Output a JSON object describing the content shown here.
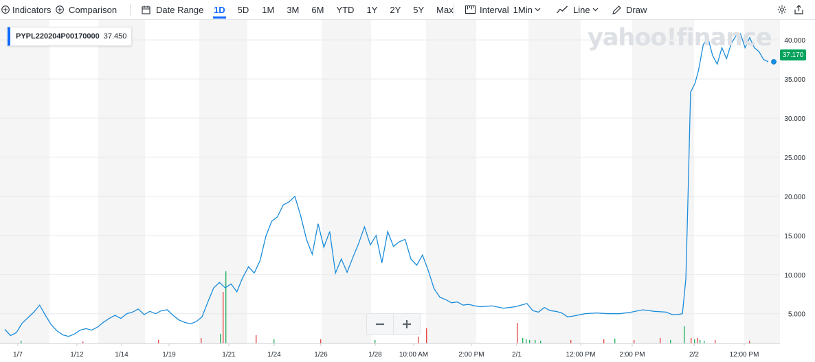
{
  "toolbar": {
    "indicators_label": "Indicators",
    "comparison_label": "Comparison",
    "date_range_label": "Date Range",
    "ranges": [
      "1D",
      "5D",
      "1M",
      "3M",
      "6M",
      "YTD",
      "1Y",
      "2Y",
      "5Y",
      "Max"
    ],
    "active_range": "1D",
    "interval_label": "Interval",
    "interval_value": "1Min",
    "chart_type_label": "Line",
    "draw_label": "Draw"
  },
  "legend": {
    "symbol": "PYPL220204P00170000",
    "value": "37.450"
  },
  "last_price": "37.170",
  "watermark": "yahoo!finance",
  "colors": {
    "line": "#1a8cdb",
    "accent": "#0f69ff",
    "price_tag": "#00a25c",
    "band": "#f5f5f5",
    "vol_up": "#21b25d",
    "vol_down": "#e84a4a"
  },
  "chart_data": {
    "type": "line",
    "title": "",
    "series": [
      {
        "name": "PYPL220204P00170000"
      }
    ],
    "x_ticks": [
      "1/7",
      "1/12",
      "1/14",
      "1/19",
      "1/21",
      "1/24",
      "1/26",
      "1/28",
      "10:00 AM",
      "2:00 PM",
      "2/1",
      "12:00 PM",
      "2:00 PM",
      "2/2",
      "12:00 PM"
    ],
    "y_ticks": [
      "5.000",
      "10.000",
      "15.000",
      "20.000",
      "25.000",
      "30.000",
      "35.000",
      "40.000"
    ],
    "ylim": [
      1.2,
      41.5
    ],
    "points": [
      [
        0,
        3.0
      ],
      [
        0.5,
        2.2
      ],
      [
        1,
        2.6
      ],
      [
        1.5,
        3.8
      ],
      [
        2,
        4.5
      ],
      [
        2.5,
        5.2
      ],
      [
        3,
        6.1
      ],
      [
        3.5,
        4.8
      ],
      [
        4,
        3.6
      ],
      [
        4.5,
        2.8
      ],
      [
        5,
        2.3
      ],
      [
        5.5,
        2.1
      ],
      [
        6,
        2.4
      ],
      [
        6.5,
        2.9
      ],
      [
        7,
        3.1
      ],
      [
        7.5,
        2.9
      ],
      [
        8,
        3.3
      ],
      [
        8.5,
        3.9
      ],
      [
        9,
        4.4
      ],
      [
        9.5,
        4.8
      ],
      [
        10,
        4.4
      ],
      [
        10.5,
        5.0
      ],
      [
        11,
        5.2
      ],
      [
        11.5,
        5.6
      ],
      [
        12,
        4.9
      ],
      [
        12.5,
        5.3
      ],
      [
        13,
        5.0
      ],
      [
        13.5,
        5.4
      ],
      [
        14,
        5.5
      ],
      [
        14.5,
        4.8
      ],
      [
        15,
        4.2
      ],
      [
        15.5,
        3.9
      ],
      [
        16,
        3.7
      ],
      [
        16.5,
        4.0
      ],
      [
        17,
        4.6
      ],
      [
        17.5,
        6.5
      ],
      [
        18,
        8.3
      ],
      [
        18.5,
        9.0
      ],
      [
        19,
        8.3
      ],
      [
        19.5,
        8.8
      ],
      [
        20,
        7.8
      ],
      [
        20.5,
        9.6
      ],
      [
        21,
        11.0
      ],
      [
        21.5,
        10.2
      ],
      [
        22,
        11.8
      ],
      [
        22.5,
        14.9
      ],
      [
        23,
        16.8
      ],
      [
        23.5,
        17.4
      ],
      [
        24,
        18.9
      ],
      [
        24.5,
        19.3
      ],
      [
        25,
        20.0
      ],
      [
        25.5,
        17.5
      ],
      [
        26,
        14.5
      ],
      [
        26.5,
        12.6
      ],
      [
        27,
        16.5
      ],
      [
        27.5,
        13.5
      ],
      [
        28,
        15.5
      ],
      [
        28.5,
        10.2
      ],
      [
        29,
        12.0
      ],
      [
        29.5,
        10.3
      ],
      [
        30,
        12.2
      ],
      [
        30.5,
        14.0
      ],
      [
        31,
        16.1
      ],
      [
        31.5,
        13.8
      ],
      [
        32,
        15.0
      ],
      [
        32.5,
        11.5
      ],
      [
        33,
        15.5
      ],
      [
        33.5,
        13.6
      ],
      [
        34,
        14.2
      ],
      [
        34.5,
        14.5
      ],
      [
        35,
        12.0
      ],
      [
        35.5,
        11.2
      ],
      [
        36,
        12.5
      ],
      [
        36.5,
        10.5
      ],
      [
        37,
        8.2
      ],
      [
        37.5,
        7.1
      ],
      [
        38,
        6.8
      ],
      [
        38.5,
        6.4
      ],
      [
        39,
        6.5
      ],
      [
        39.5,
        6.1
      ],
      [
        40,
        6.2
      ],
      [
        40.5,
        6.0
      ],
      [
        41,
        5.9
      ],
      [
        42,
        6.0
      ],
      [
        43,
        5.7
      ],
      [
        44,
        5.9
      ],
      [
        45,
        6.3
      ],
      [
        45.5,
        5.4
      ],
      [
        46,
        5.2
      ],
      [
        46.5,
        5.8
      ],
      [
        47,
        5.4
      ],
      [
        47.5,
        5.3
      ],
      [
        48,
        5.1
      ],
      [
        48.5,
        4.6
      ],
      [
        49,
        4.7
      ],
      [
        50,
        5.0
      ],
      [
        51,
        5.1
      ],
      [
        52,
        5.0
      ],
      [
        53,
        5.0
      ],
      [
        54,
        5.2
      ],
      [
        55,
        5.5
      ],
      [
        56,
        5.3
      ],
      [
        57,
        5.2
      ],
      [
        57.5,
        4.9
      ],
      [
        58,
        4.9
      ],
      [
        58.4,
        5.0
      ],
      [
        58.7,
        9.5
      ],
      [
        58.9,
        21.0
      ],
      [
        59.1,
        33.3
      ],
      [
        59.5,
        34.5
      ],
      [
        59.8,
        36.2
      ],
      [
        60.2,
        39.4
      ],
      [
        60.6,
        40.3
      ],
      [
        61,
        38.0
      ],
      [
        61.4,
        36.9
      ],
      [
        61.8,
        39.0
      ],
      [
        62.2,
        37.6
      ],
      [
        62.6,
        39.5
      ],
      [
        63,
        40.5
      ],
      [
        63.4,
        40.8
      ],
      [
        63.8,
        39.0
      ],
      [
        64.2,
        40.3
      ],
      [
        64.6,
        39.0
      ],
      [
        65,
        38.5
      ],
      [
        65.4,
        37.5
      ],
      [
        65.8,
        37.2
      ]
    ],
    "x_units": "trading time index (chart spans 1/7 to 2/2)",
    "grid": true,
    "legend_position": "top-left"
  }
}
